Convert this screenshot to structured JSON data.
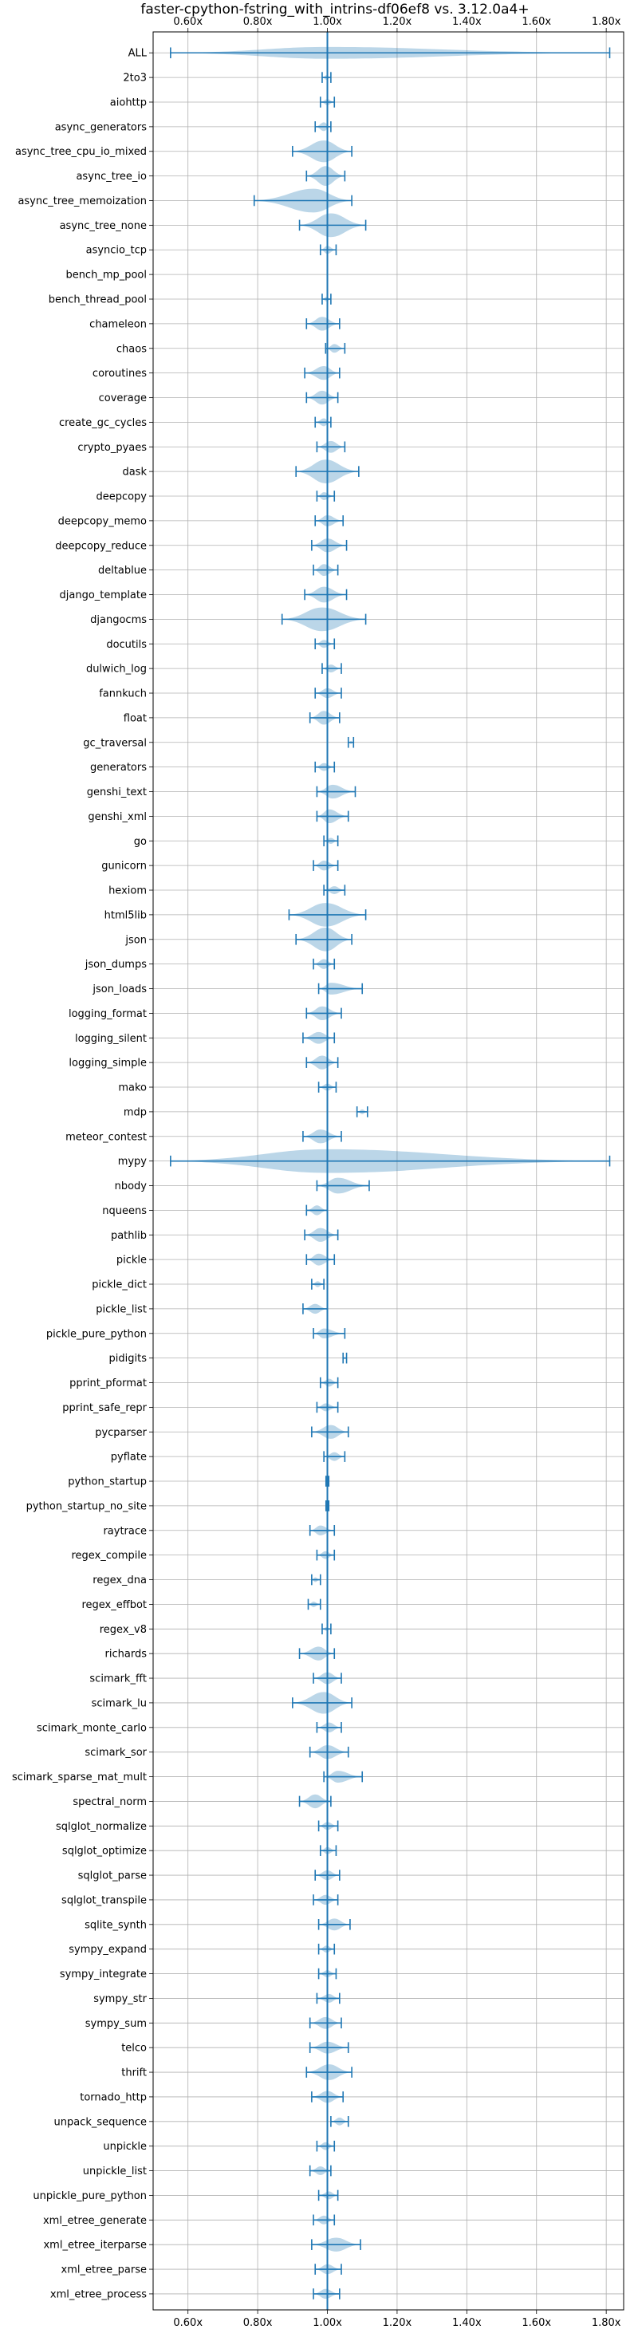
{
  "chart_data": {
    "type": "violin",
    "title": "faster-cpython-fstring_with_intrins-df06ef8 vs. 3.12.0a4+",
    "xlim": [
      0.5,
      1.85
    ],
    "xticks": [
      0.6,
      0.8,
      1.0,
      1.2,
      1.4,
      1.6,
      1.8
    ],
    "xtick_labels": [
      "0.60x",
      "0.80x",
      "1.00x",
      "1.20x",
      "1.40x",
      "1.60x",
      "1.80x"
    ],
    "reference_line": 1.0,
    "grid": true,
    "colors": {
      "line": "#1f77b4",
      "fill": "#1f77b4"
    },
    "benchmarks": [
      {
        "name": "ALL",
        "min": 0.55,
        "max": 1.81,
        "mean": 1.0,
        "half_width": 0.03
      },
      {
        "name": "2to3",
        "min": 0.985,
        "max": 1.01,
        "mean": 0.998,
        "half_width": 0.012
      },
      {
        "name": "aiohttp",
        "min": 0.98,
        "max": 1.02,
        "mean": 1.0,
        "half_width": 0.015
      },
      {
        "name": "async_generators",
        "min": 0.965,
        "max": 1.01,
        "mean": 0.99,
        "half_width": 0.022
      },
      {
        "name": "async_tree_cpu_io_mixed",
        "min": 0.9,
        "max": 1.07,
        "mean": 0.99,
        "half_width": 0.055
      },
      {
        "name": "async_tree_io",
        "min": 0.94,
        "max": 1.05,
        "mean": 0.995,
        "half_width": 0.05
      },
      {
        "name": "async_tree_memoization",
        "min": 0.79,
        "max": 1.07,
        "mean": 0.96,
        "half_width": 0.12
      },
      {
        "name": "async_tree_none",
        "min": 0.92,
        "max": 1.11,
        "mean": 1.01,
        "half_width": 0.08
      },
      {
        "name": "asyncio_tcp",
        "min": 0.98,
        "max": 1.025,
        "mean": 1.0,
        "half_width": 0.02
      },
      {
        "name": "bench_mp_pool",
        "min": 1.0,
        "max": 1.0,
        "mean": 1.0,
        "half_width": 0.0
      },
      {
        "name": "bench_thread_pool",
        "min": 0.985,
        "max": 1.01,
        "mean": 0.998,
        "half_width": 0.012
      },
      {
        "name": "chameleon",
        "min": 0.94,
        "max": 1.035,
        "mean": 0.985,
        "half_width": 0.035
      },
      {
        "name": "chaos",
        "min": 0.995,
        "max": 1.05,
        "mean": 1.02,
        "half_width": 0.022
      },
      {
        "name": "coroutines",
        "min": 0.935,
        "max": 1.035,
        "mean": 0.99,
        "half_width": 0.035
      },
      {
        "name": "coverage",
        "min": 0.94,
        "max": 1.03,
        "mean": 0.985,
        "half_width": 0.035
      },
      {
        "name": "create_gc_cycles",
        "min": 0.965,
        "max": 1.01,
        "mean": 0.99,
        "half_width": 0.02
      },
      {
        "name": "crypto_pyaes",
        "min": 0.97,
        "max": 1.05,
        "mean": 1.01,
        "half_width": 0.03
      },
      {
        "name": "dask",
        "min": 0.91,
        "max": 1.09,
        "mean": 0.995,
        "half_width": 0.06
      },
      {
        "name": "deepcopy",
        "min": 0.97,
        "max": 1.02,
        "mean": 0.99,
        "half_width": 0.02
      },
      {
        "name": "deepcopy_memo",
        "min": 0.965,
        "max": 1.045,
        "mean": 1.0,
        "half_width": 0.028
      },
      {
        "name": "deepcopy_reduce",
        "min": 0.955,
        "max": 1.055,
        "mean": 1.0,
        "half_width": 0.035
      },
      {
        "name": "deltablue",
        "min": 0.96,
        "max": 1.03,
        "mean": 0.99,
        "half_width": 0.03
      },
      {
        "name": "django_template",
        "min": 0.935,
        "max": 1.055,
        "mean": 0.99,
        "half_width": 0.04
      },
      {
        "name": "djangocms",
        "min": 0.87,
        "max": 1.11,
        "mean": 0.985,
        "half_width": 0.07
      },
      {
        "name": "docutils",
        "min": 0.965,
        "max": 1.02,
        "mean": 0.99,
        "half_width": 0.02
      },
      {
        "name": "dulwich_log",
        "min": 0.985,
        "max": 1.04,
        "mean": 1.01,
        "half_width": 0.02
      },
      {
        "name": "fannkuch",
        "min": 0.965,
        "max": 1.04,
        "mean": 1.0,
        "half_width": 0.025
      },
      {
        "name": "float",
        "min": 0.95,
        "max": 1.035,
        "mean": 0.99,
        "half_width": 0.035
      },
      {
        "name": "gc_traversal",
        "min": 1.06,
        "max": 1.075,
        "mean": 1.068,
        "half_width": 0.008
      },
      {
        "name": "generators",
        "min": 0.965,
        "max": 1.02,
        "mean": 0.99,
        "half_width": 0.02
      },
      {
        "name": "genshi_text",
        "min": 0.97,
        "max": 1.08,
        "mean": 1.015,
        "half_width": 0.035
      },
      {
        "name": "genshi_xml",
        "min": 0.97,
        "max": 1.06,
        "mean": 1.005,
        "half_width": 0.035
      },
      {
        "name": "go",
        "min": 0.99,
        "max": 1.03,
        "mean": 1.01,
        "half_width": 0.015
      },
      {
        "name": "gunicorn",
        "min": 0.96,
        "max": 1.03,
        "mean": 0.99,
        "half_width": 0.025
      },
      {
        "name": "hexiom",
        "min": 0.99,
        "max": 1.05,
        "mean": 1.02,
        "half_width": 0.02
      },
      {
        "name": "html5lib",
        "min": 0.89,
        "max": 1.11,
        "mean": 0.995,
        "half_width": 0.06
      },
      {
        "name": "json",
        "min": 0.91,
        "max": 1.07,
        "mean": 0.995,
        "half_width": 0.06
      },
      {
        "name": "json_dumps",
        "min": 0.96,
        "max": 1.02,
        "mean": 0.99,
        "half_width": 0.025
      },
      {
        "name": "json_loads",
        "min": 0.975,
        "max": 1.1,
        "mean": 1.01,
        "half_width": 0.03
      },
      {
        "name": "logging_format",
        "min": 0.94,
        "max": 1.04,
        "mean": 0.985,
        "half_width": 0.035
      },
      {
        "name": "logging_silent",
        "min": 0.93,
        "max": 1.02,
        "mean": 0.975,
        "half_width": 0.03
      },
      {
        "name": "logging_simple",
        "min": 0.94,
        "max": 1.03,
        "mean": 0.985,
        "half_width": 0.035
      },
      {
        "name": "mako",
        "min": 0.975,
        "max": 1.025,
        "mean": 1.0,
        "half_width": 0.018
      },
      {
        "name": "mdp",
        "min": 1.085,
        "max": 1.115,
        "mean": 1.1,
        "half_width": 0.012
      },
      {
        "name": "meteor_contest",
        "min": 0.93,
        "max": 1.04,
        "mean": 0.98,
        "half_width": 0.035
      },
      {
        "name": "mypy",
        "min": 0.55,
        "max": 1.81,
        "mean": 1.0,
        "half_width": 0.45
      },
      {
        "name": "nbody",
        "min": 0.97,
        "max": 1.12,
        "mean": 1.03,
        "half_width": 0.04
      },
      {
        "name": "nqueens",
        "min": 0.94,
        "max": 1.0,
        "mean": 0.97,
        "half_width": 0.025
      },
      {
        "name": "pathlib",
        "min": 0.935,
        "max": 1.03,
        "mean": 0.98,
        "half_width": 0.035
      },
      {
        "name": "pickle",
        "min": 0.94,
        "max": 1.02,
        "mean": 0.975,
        "half_width": 0.03
      },
      {
        "name": "pickle_dict",
        "min": 0.955,
        "max": 0.99,
        "mean": 0.972,
        "half_width": 0.015
      },
      {
        "name": "pickle_list",
        "min": 0.93,
        "max": 1.0,
        "mean": 0.965,
        "half_width": 0.025
      },
      {
        "name": "pickle_pure_python",
        "min": 0.96,
        "max": 1.05,
        "mean": 0.99,
        "half_width": 0.025
      },
      {
        "name": "pidigits",
        "min": 1.045,
        "max": 1.055,
        "mean": 1.05,
        "half_width": 0.004
      },
      {
        "name": "pprint_pformat",
        "min": 0.98,
        "max": 1.03,
        "mean": 1.005,
        "half_width": 0.02
      },
      {
        "name": "pprint_safe_repr",
        "min": 0.97,
        "max": 1.03,
        "mean": 0.995,
        "half_width": 0.02
      },
      {
        "name": "pycparser",
        "min": 0.955,
        "max": 1.06,
        "mean": 1.01,
        "half_width": 0.035
      },
      {
        "name": "pyflate",
        "min": 0.99,
        "max": 1.05,
        "mean": 1.02,
        "half_width": 0.022
      },
      {
        "name": "python_startup",
        "min": 0.996,
        "max": 1.004,
        "mean": 1.0,
        "half_width": 0.003
      },
      {
        "name": "python_startup_no_site",
        "min": 0.996,
        "max": 1.004,
        "mean": 1.0,
        "half_width": 0.003
      },
      {
        "name": "raytrace",
        "min": 0.95,
        "max": 1.02,
        "mean": 0.98,
        "half_width": 0.025
      },
      {
        "name": "regex_compile",
        "min": 0.97,
        "max": 1.02,
        "mean": 0.995,
        "half_width": 0.02
      },
      {
        "name": "regex_dna",
        "min": 0.955,
        "max": 0.98,
        "mean": 0.965,
        "half_width": 0.012
      },
      {
        "name": "regex_effbot",
        "min": 0.945,
        "max": 0.98,
        "mean": 0.96,
        "half_width": 0.014
      },
      {
        "name": "regex_v8",
        "min": 0.985,
        "max": 1.01,
        "mean": 0.998,
        "half_width": 0.01
      },
      {
        "name": "richards",
        "min": 0.92,
        "max": 1.02,
        "mean": 0.975,
        "half_width": 0.035
      },
      {
        "name": "scimark_fft",
        "min": 0.96,
        "max": 1.04,
        "mean": 1.0,
        "half_width": 0.03
      },
      {
        "name": "scimark_lu",
        "min": 0.9,
        "max": 1.07,
        "mean": 0.99,
        "half_width": 0.055
      },
      {
        "name": "scimark_monte_carlo",
        "min": 0.97,
        "max": 1.04,
        "mean": 1.005,
        "half_width": 0.025
      },
      {
        "name": "scimark_sor",
        "min": 0.95,
        "max": 1.06,
        "mean": 1.0,
        "half_width": 0.035
      },
      {
        "name": "scimark_sparse_mat_mult",
        "min": 0.99,
        "max": 1.1,
        "mean": 1.03,
        "half_width": 0.03
      },
      {
        "name": "spectral_norm",
        "min": 0.92,
        "max": 1.01,
        "mean": 0.965,
        "half_width": 0.035
      },
      {
        "name": "sqlglot_normalize",
        "min": 0.975,
        "max": 1.03,
        "mean": 1.0,
        "half_width": 0.02
      },
      {
        "name": "sqlglot_optimize",
        "min": 0.98,
        "max": 1.025,
        "mean": 1.0,
        "half_width": 0.018
      },
      {
        "name": "sqlglot_parse",
        "min": 0.965,
        "max": 1.035,
        "mean": 1.0,
        "half_width": 0.025
      },
      {
        "name": "sqlglot_transpile",
        "min": 0.96,
        "max": 1.03,
        "mean": 0.995,
        "half_width": 0.025
      },
      {
        "name": "sqlite_synth",
        "min": 0.975,
        "max": 1.065,
        "mean": 1.02,
        "half_width": 0.03
      },
      {
        "name": "sympy_expand",
        "min": 0.975,
        "max": 1.02,
        "mean": 0.998,
        "half_width": 0.018
      },
      {
        "name": "sympy_integrate",
        "min": 0.975,
        "max": 1.025,
        "mean": 1.0,
        "half_width": 0.018
      },
      {
        "name": "sympy_str",
        "min": 0.97,
        "max": 1.035,
        "mean": 1.005,
        "half_width": 0.022
      },
      {
        "name": "sympy_sum",
        "min": 0.95,
        "max": 1.04,
        "mean": 0.995,
        "half_width": 0.03
      },
      {
        "name": "telco",
        "min": 0.95,
        "max": 1.06,
        "mean": 1.0,
        "half_width": 0.03
      },
      {
        "name": "thrift",
        "min": 0.94,
        "max": 1.07,
        "mean": 1.005,
        "half_width": 0.04
      },
      {
        "name": "tornado_http",
        "min": 0.955,
        "max": 1.045,
        "mean": 1.0,
        "half_width": 0.03
      },
      {
        "name": "unpack_sequence",
        "min": 1.01,
        "max": 1.06,
        "mean": 1.035,
        "half_width": 0.02
      },
      {
        "name": "unpickle",
        "min": 0.97,
        "max": 1.02,
        "mean": 0.995,
        "half_width": 0.02
      },
      {
        "name": "unpickle_list",
        "min": 0.95,
        "max": 1.01,
        "mean": 0.98,
        "half_width": 0.022
      },
      {
        "name": "unpickle_pure_python",
        "min": 0.975,
        "max": 1.03,
        "mean": 1.005,
        "half_width": 0.02
      },
      {
        "name": "xml_etree_generate",
        "min": 0.96,
        "max": 1.02,
        "mean": 0.99,
        "half_width": 0.022
      },
      {
        "name": "xml_etree_iterparse",
        "min": 0.955,
        "max": 1.095,
        "mean": 1.025,
        "half_width": 0.035
      },
      {
        "name": "xml_etree_parse",
        "min": 0.965,
        "max": 1.04,
        "mean": 1.0,
        "half_width": 0.025
      },
      {
        "name": "xml_etree_process",
        "min": 0.96,
        "max": 1.035,
        "mean": 0.995,
        "half_width": 0.025
      }
    ]
  }
}
